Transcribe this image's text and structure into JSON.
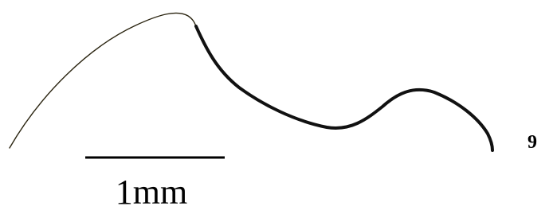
{
  "scale_bar": {
    "label": "1mm"
  },
  "panel_label": "9"
}
